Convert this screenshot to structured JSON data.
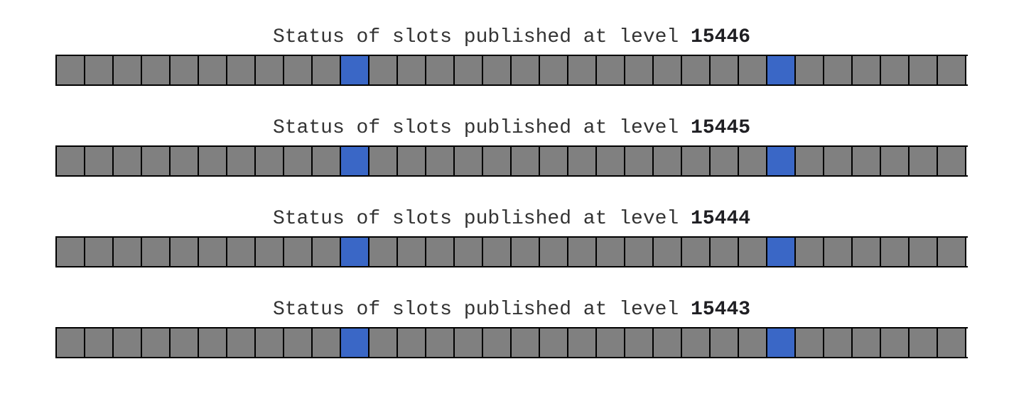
{
  "levels": [
    {
      "title_prefix": "Status of slots published at level ",
      "level": "15446",
      "slots": [
        "unpublished",
        "unpublished",
        "unpublished",
        "unpublished",
        "unpublished",
        "unpublished",
        "unpublished",
        "unpublished",
        "unpublished",
        "unpublished",
        "published",
        "unpublished",
        "unpublished",
        "unpublished",
        "unpublished",
        "unpublished",
        "unpublished",
        "unpublished",
        "unpublished",
        "unpublished",
        "unpublished",
        "unpublished",
        "unpublished",
        "unpublished",
        "unpublished",
        "published",
        "unpublished",
        "unpublished",
        "unpublished",
        "unpublished",
        "unpublished",
        "unpublished"
      ]
    },
    {
      "title_prefix": "Status of slots published at level ",
      "level": "15445",
      "slots": [
        "unpublished",
        "unpublished",
        "unpublished",
        "unpublished",
        "unpublished",
        "unpublished",
        "unpublished",
        "unpublished",
        "unpublished",
        "unpublished",
        "published",
        "unpublished",
        "unpublished",
        "unpublished",
        "unpublished",
        "unpublished",
        "unpublished",
        "unpublished",
        "unpublished",
        "unpublished",
        "unpublished",
        "unpublished",
        "unpublished",
        "unpublished",
        "unpublished",
        "published",
        "unpublished",
        "unpublished",
        "unpublished",
        "unpublished",
        "unpublished",
        "unpublished"
      ]
    },
    {
      "title_prefix": "Status of slots published at level ",
      "level": "15444",
      "slots": [
        "unpublished",
        "unpublished",
        "unpublished",
        "unpublished",
        "unpublished",
        "unpublished",
        "unpublished",
        "unpublished",
        "unpublished",
        "unpublished",
        "published",
        "unpublished",
        "unpublished",
        "unpublished",
        "unpublished",
        "unpublished",
        "unpublished",
        "unpublished",
        "unpublished",
        "unpublished",
        "unpublished",
        "unpublished",
        "unpublished",
        "unpublished",
        "unpublished",
        "published",
        "unpublished",
        "unpublished",
        "unpublished",
        "unpublished",
        "unpublished",
        "unpublished"
      ]
    },
    {
      "title_prefix": "Status of slots published at level ",
      "level": "15443",
      "slots": [
        "unpublished",
        "unpublished",
        "unpublished",
        "unpublished",
        "unpublished",
        "unpublished",
        "unpublished",
        "unpublished",
        "unpublished",
        "unpublished",
        "published",
        "unpublished",
        "unpublished",
        "unpublished",
        "unpublished",
        "unpublished",
        "unpublished",
        "unpublished",
        "unpublished",
        "unpublished",
        "unpublished",
        "unpublished",
        "unpublished",
        "unpublished",
        "unpublished",
        "published",
        "unpublished",
        "unpublished",
        "unpublished",
        "unpublished",
        "unpublished",
        "unpublished"
      ]
    }
  ],
  "colors": {
    "published": "#3a67c6",
    "unpublished": "#808080",
    "border": "#000000"
  }
}
